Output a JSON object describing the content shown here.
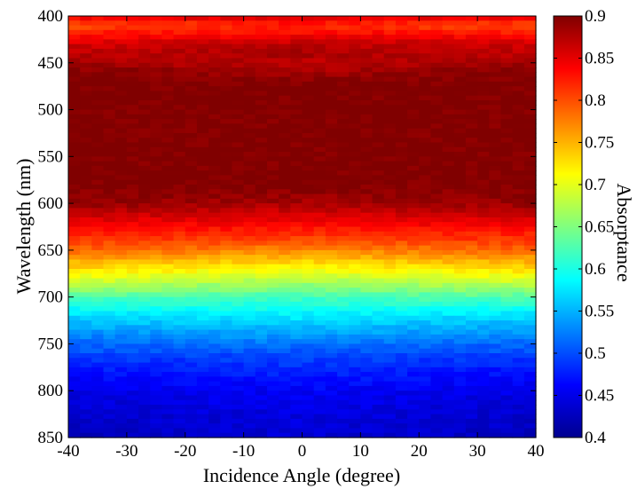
{
  "chart_data": {
    "type": "heatmap",
    "xlabel": "Incidence Angle (degree)",
    "ylabel": "Wavelength (nm)",
    "colorbar_label": "Absorptance",
    "colormap": "jet",
    "xlim": [
      -40,
      40
    ],
    "ylim": [
      400,
      850
    ],
    "y_inverted": true,
    "color_range": [
      0.4,
      0.9
    ],
    "x_ticks": [
      "-40",
      "-30",
      "-20",
      "-10",
      "0",
      "10",
      "20",
      "30",
      "40"
    ],
    "y_ticks": [
      "400",
      "450",
      "500",
      "550",
      "600",
      "650",
      "700",
      "750",
      "800",
      "850"
    ],
    "colorbar_ticks": [
      "0.9",
      "0.85",
      "0.8",
      "0.75",
      "0.7",
      "0.65",
      "0.6",
      "0.55",
      "0.5",
      "0.45",
      "0.4"
    ],
    "wavelength_nm": [
      400,
      410,
      420,
      430,
      440,
      450,
      460,
      470,
      480,
      500,
      550,
      580,
      600,
      610,
      620,
      630,
      640,
      650,
      660,
      670,
      680,
      690,
      700,
      710,
      720,
      730,
      740,
      750,
      760,
      770,
      780,
      800,
      820,
      850
    ],
    "absorptance_at_center": [
      0.86,
      0.82,
      0.84,
      0.87,
      0.88,
      0.87,
      0.88,
      0.9,
      0.9,
      0.9,
      0.9,
      0.9,
      0.88,
      0.86,
      0.84,
      0.82,
      0.8,
      0.77,
      0.74,
      0.71,
      0.68,
      0.65,
      0.62,
      0.6,
      0.58,
      0.56,
      0.54,
      0.52,
      0.5,
      0.49,
      0.48,
      0.46,
      0.45,
      0.44
    ],
    "absorptance_at_edges": [
      0.85,
      0.8,
      0.83,
      0.86,
      0.87,
      0.88,
      0.9,
      0.9,
      0.9,
      0.9,
      0.9,
      0.9,
      0.89,
      0.87,
      0.85,
      0.83,
      0.81,
      0.79,
      0.76,
      0.73,
      0.7,
      0.67,
      0.63,
      0.6,
      0.57,
      0.55,
      0.53,
      0.51,
      0.5,
      0.48,
      0.47,
      0.45,
      0.44,
      0.43
    ]
  }
}
